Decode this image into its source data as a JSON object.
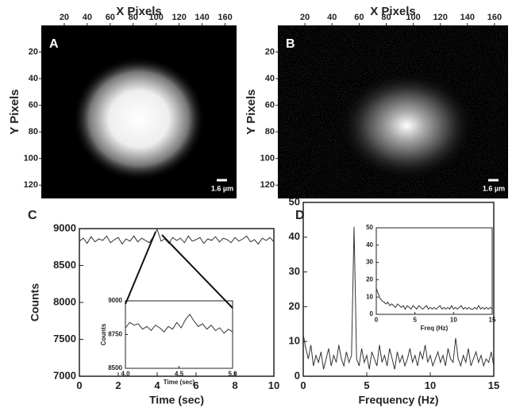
{
  "chart_data": [
    {
      "type": "image",
      "panel": "A",
      "xlabel": "X Pixels",
      "ylabel": "Y Pixels",
      "scale_bar": "1.6 µm",
      "xlim": [
        0,
        170
      ],
      "ylim": [
        0,
        130
      ],
      "xticks": [
        20,
        40,
        60,
        80,
        100,
        120,
        140,
        160
      ],
      "yticks": [
        20,
        40,
        60,
        80,
        100,
        120
      ]
    },
    {
      "type": "image",
      "panel": "B",
      "xlabel": "X Pixels",
      "ylabel": "Y Pixels",
      "scale_bar": "1.6 µm",
      "xlim": [
        0,
        170
      ],
      "ylim": [
        0,
        130
      ],
      "xticks": [
        20,
        40,
        60,
        80,
        100,
        120,
        140,
        160
      ],
      "yticks": [
        20,
        40,
        60,
        80,
        100,
        120
      ]
    },
    {
      "type": "line",
      "panel": "C",
      "xlabel": "Time (sec)",
      "ylabel": "Counts",
      "color": "#333333",
      "xlim": [
        0,
        10
      ],
      "ylim": [
        7000,
        9000
      ],
      "xticks": [
        0,
        2,
        4,
        6,
        8,
        10
      ],
      "yticks": [
        7000,
        7500,
        8000,
        8500,
        9000
      ],
      "x": [
        0,
        0.2,
        0.4,
        0.6,
        0.8,
        1,
        1.2,
        1.4,
        1.6,
        1.8,
        2,
        2.2,
        2.4,
        2.6,
        2.8,
        3,
        3.2,
        3.4,
        3.6,
        3.8,
        4,
        4.2,
        4.4,
        4.6,
        4.8,
        5,
        5.2,
        5.4,
        5.6,
        5.8,
        6,
        6.2,
        6.4,
        6.6,
        6.8,
        7,
        7.2,
        7.4,
        7.6,
        7.8,
        8,
        8.2,
        8.4,
        8.6,
        8.8,
        9,
        9.2,
        9.4,
        9.6,
        9.8,
        10
      ],
      "values": [
        8830,
        8870,
        8800,
        8890,
        8820,
        8860,
        8840,
        8900,
        8810,
        8850,
        8880,
        8790,
        8860,
        8830,
        8900,
        8820,
        8870,
        8840,
        8810,
        8890,
        8990,
        8830,
        8860,
        8800,
        8880,
        8840,
        8870,
        8810,
        8900,
        8830,
        8850,
        8880,
        8800,
        8860,
        8840,
        8890,
        8820,
        8870,
        8850,
        8810,
        8880,
        8830,
        8860,
        8900,
        8820,
        8850,
        8790,
        8870,
        8840,
        8880,
        8820
      ],
      "inset": {
        "xlabel": "Time (sec)",
        "ylabel": "Counts",
        "xlim": [
          4,
          5
        ],
        "ylim": [
          8500,
          9000
        ],
        "xticks": [
          {
            "value": 4,
            "label": "4.0"
          },
          {
            "value": 4.5,
            "label": "4.5"
          },
          {
            "value": 5,
            "label": "5.0"
          }
        ],
        "yticks": [
          8500,
          8750,
          9000
        ],
        "x": [
          4,
          4.04,
          4.08,
          4.12,
          4.16,
          4.2,
          4.24,
          4.28,
          4.32,
          4.36,
          4.4,
          4.44,
          4.48,
          4.52,
          4.56,
          4.6,
          4.64,
          4.68,
          4.72,
          4.76,
          4.8,
          4.84,
          4.88,
          4.92,
          4.96,
          5
        ],
        "values": [
          8800,
          8840,
          8820,
          8830,
          8790,
          8810,
          8780,
          8820,
          8800,
          8770,
          8810,
          8790,
          8840,
          8800,
          8860,
          8900,
          8850,
          8810,
          8830,
          8790,
          8820,
          8780,
          8800,
          8760,
          8790,
          8770
        ]
      }
    },
    {
      "type": "line",
      "panel": "D",
      "xlabel": "Frequency (Hz)",
      "color": "#333333",
      "xlim": [
        0,
        15
      ],
      "ylim": [
        0,
        50
      ],
      "xticks": [
        0,
        5,
        10,
        15
      ],
      "yticks": [
        0,
        10,
        20,
        30,
        40,
        50
      ],
      "x": [
        0,
        0.2,
        0.4,
        0.6,
        0.8,
        1,
        1.2,
        1.4,
        1.6,
        1.8,
        2,
        2.2,
        2.4,
        2.6,
        2.8,
        3,
        3.2,
        3.4,
        3.6,
        3.8,
        4,
        4.2,
        4.4,
        4.6,
        4.8,
        5,
        5.2,
        5.4,
        5.6,
        5.8,
        6,
        6.2,
        6.4,
        6.6,
        6.8,
        7,
        7.2,
        7.4,
        7.6,
        7.8,
        8,
        8.2,
        8.4,
        8.6,
        8.8,
        9,
        9.2,
        9.4,
        9.6,
        9.8,
        10,
        10.2,
        10.4,
        10.6,
        10.8,
        11,
        11.2,
        11.4,
        11.6,
        11.8,
        12,
        12.2,
        12.4,
        12.6,
        12.8,
        13,
        13.2,
        13.4,
        13.6,
        13.8,
        14,
        14.2,
        14.4,
        14.6,
        14.8,
        15
      ],
      "values": [
        12,
        8,
        5,
        9,
        3,
        6,
        4,
        7,
        2,
        5,
        8,
        3,
        6,
        4,
        9,
        5,
        3,
        7,
        4,
        6,
        43,
        5,
        3,
        8,
        4,
        6,
        2,
        7,
        5,
        3,
        9,
        4,
        6,
        3,
        8,
        5,
        2,
        7,
        4,
        6,
        3,
        5,
        8,
        4,
        6,
        3,
        7,
        5,
        9,
        4,
        6,
        3,
        5,
        7,
        4,
        6,
        3,
        8,
        5,
        4,
        11,
        5,
        3,
        6,
        4,
        8,
        3,
        5,
        7,
        4,
        6,
        3,
        5,
        4,
        7,
        3
      ],
      "inset": {
        "xlabel": "Freq (Hz)",
        "xlim": [
          0,
          15
        ],
        "ylim": [
          0,
          50
        ],
        "xticks": [
          0,
          5,
          10,
          15
        ],
        "yticks": [
          0,
          10,
          20,
          30,
          40,
          50
        ],
        "x": [
          0,
          0.25,
          0.5,
          0.75,
          1,
          1.25,
          1.5,
          1.75,
          2,
          2.25,
          2.5,
          2.75,
          3,
          3.25,
          3.5,
          3.75,
          4,
          4.25,
          4.5,
          4.75,
          5,
          5.25,
          5.5,
          5.75,
          6,
          6.25,
          6.5,
          6.75,
          7,
          7.25,
          7.5,
          7.75,
          8,
          8.25,
          8.5,
          8.75,
          9,
          9.25,
          9.5,
          9.75,
          10,
          10.25,
          10.5,
          10.75,
          11,
          11.25,
          11.5,
          11.75,
          12,
          12.25,
          12.5,
          12.75,
          13,
          13.25,
          13.5,
          13.75,
          14,
          14.25,
          14.5,
          14.75,
          15
        ],
        "values": [
          15,
          12,
          9,
          8,
          7,
          6,
          7,
          5,
          6,
          5,
          4,
          6,
          5,
          4,
          5,
          3,
          5,
          4,
          3,
          5,
          4,
          3,
          5,
          4,
          3,
          4,
          5,
          3,
          4,
          3,
          4,
          3,
          4,
          5,
          3,
          4,
          3,
          4,
          3,
          5,
          3,
          4,
          3,
          4,
          5,
          3,
          4,
          3,
          4,
          3,
          3,
          4,
          3,
          5,
          3,
          4,
          3,
          4,
          3,
          4,
          3
        ]
      }
    }
  ]
}
